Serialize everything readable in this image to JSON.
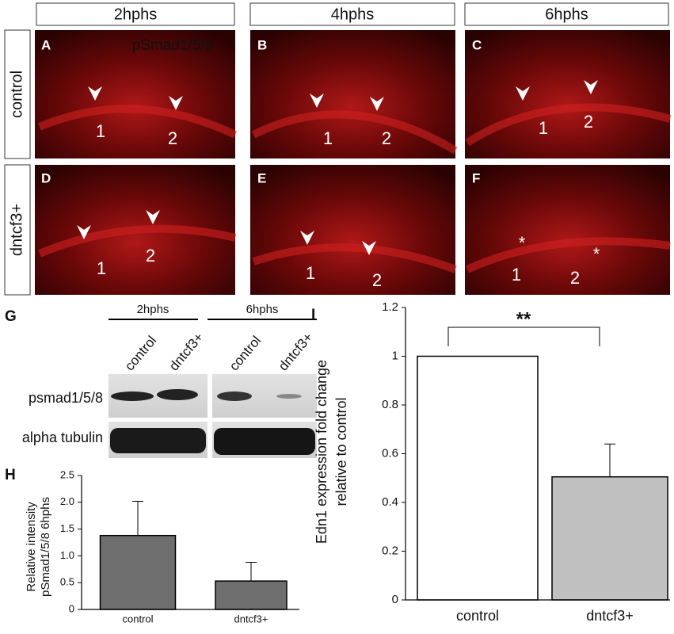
{
  "panel_headers": [
    "2hphs",
    "4hphs",
    "6hphs"
  ],
  "row_labels": [
    "control",
    "dntcf3+"
  ],
  "image_panels": [
    {
      "letter": "A",
      "stain": "pSmad1/5/8",
      "labels": [
        "1",
        "2"
      ]
    },
    {
      "letter": "B",
      "labels": [
        "1",
        "2"
      ]
    },
    {
      "letter": "C",
      "labels": [
        "1",
        "2"
      ]
    },
    {
      "letter": "D",
      "labels": [
        "1",
        "2"
      ]
    },
    {
      "letter": "E",
      "labels": [
        "1",
        "2"
      ]
    },
    {
      "letter": "F",
      "labels": [
        "*",
        "*",
        "1",
        "2"
      ]
    }
  ],
  "blot": {
    "letter": "G",
    "groups": [
      "2hphs",
      "6hphs"
    ],
    "lanes": [
      "control",
      "dntcf3+",
      "control",
      "dntcf3+"
    ],
    "rows": [
      "psmad1/5/8",
      "alpha tubulin"
    ]
  },
  "chart_data": [
    {
      "type": "bar",
      "panel": "H",
      "ylabel": [
        "Relative intensity",
        "pSmad1/5/8 6hphs"
      ],
      "categories": [
        "control",
        "dntcf3+"
      ],
      "values": [
        1.38,
        0.53
      ],
      "errors": [
        0.64,
        0.35
      ],
      "color": "#6e6e6e",
      "ylim": [
        0,
        2.5
      ],
      "yticks": [
        0,
        0.5,
        {
          "value": 1,
          "label": "1.0"
        },
        1.5,
        {
          "value": 2,
          "label": "2.0"
        },
        2.5
      ]
    },
    {
      "type": "bar",
      "panel": "I",
      "ylabel": [
        "Edn1 expression fold change",
        "relative to control"
      ],
      "categories": [
        "control",
        "dntcf3+"
      ],
      "values": [
        1,
        0.505
      ],
      "errors": [
        null,
        0.135
      ],
      "colors": [
        "#ffffff",
        "#c0c0c0"
      ],
      "significance": "**",
      "ylim": [
        0,
        1.2
      ],
      "yticks": [
        0,
        0.2,
        0.4,
        0.6,
        0.8,
        1,
        1.2
      ]
    }
  ]
}
